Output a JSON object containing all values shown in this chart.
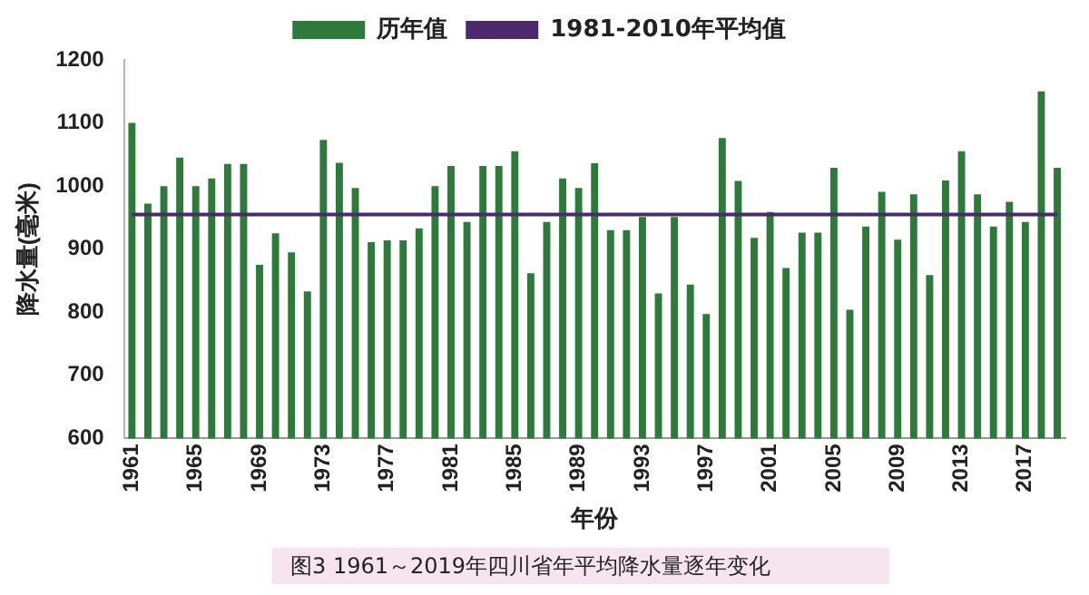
{
  "chart_data": {
    "type": "bar",
    "title": "图3  1961～2019年四川省年平均降水量逐年变化",
    "xlabel": "年份",
    "ylabel": "降水量(毫米)",
    "categories": [
      "1961",
      null,
      null,
      null,
      "1965",
      null,
      null,
      null,
      "1969",
      null,
      null,
      null,
      "1973",
      null,
      null,
      null,
      "1977",
      null,
      null,
      null,
      "1981",
      null,
      null,
      null,
      "1985",
      null,
      null,
      null,
      "1989",
      null,
      null,
      null,
      "1993",
      null,
      null,
      null,
      "1997",
      null,
      null,
      null,
      "2001",
      null,
      null,
      null,
      "2005",
      null,
      null,
      null,
      "2009",
      null,
      null,
      null,
      "2013",
      null,
      null,
      null,
      "2017",
      null,
      null
    ],
    "series": [
      {
        "name": "历年值",
        "color": "#2e7a3a",
        "values": [
          1100,
          972,
          1000,
          1045,
          1000,
          1012,
          1035,
          1035,
          875,
          925,
          895,
          833,
          1073,
          1037,
          997,
          911,
          914,
          914,
          933,
          1000,
          1032,
          943,
          1032,
          1032,
          1055,
          862,
          943,
          1012,
          997,
          1036,
          930,
          930,
          951,
          830,
          951,
          844,
          797,
          1076,
          1008,
          918,
          959,
          870,
          926,
          926,
          1029,
          804,
          936,
          991,
          915,
          987,
          859,
          1009,
          1055,
          987,
          936,
          975,
          943,
          1150,
          1029
        ]
      },
      {
        "name": "1981-2010年平均值",
        "type": "line",
        "color": "#4b2a6b",
        "values": [
          955,
          955,
          955,
          955,
          955,
          955,
          955,
          955,
          955,
          955,
          955,
          955,
          955,
          955,
          955,
          955,
          955,
          955,
          955,
          955,
          955,
          955,
          955,
          955,
          955,
          955,
          955,
          955,
          955,
          955,
          955,
          955,
          955,
          955,
          955,
          955,
          955,
          955,
          955,
          955,
          955,
          955,
          955,
          955,
          955,
          955,
          955,
          955,
          955,
          955,
          955,
          955,
          955,
          955,
          955,
          955,
          955,
          955,
          955
        ]
      }
    ],
    "ylim": [
      600,
      1200
    ],
    "yticks": [
      600,
      700,
      800,
      900,
      1000,
      1100,
      1200
    ],
    "grid": false,
    "legend": "top",
    "marker": "none"
  }
}
